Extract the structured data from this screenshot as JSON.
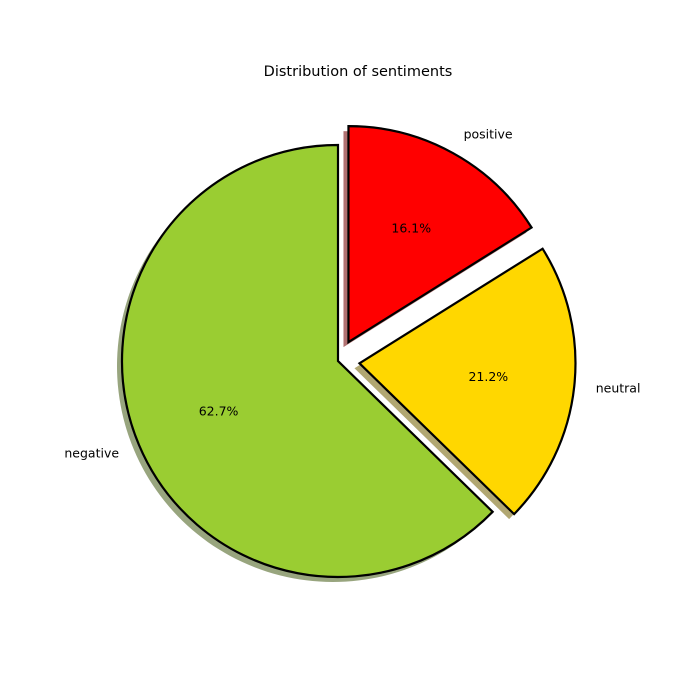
{
  "chart_data": {
    "type": "pie",
    "title": "Distribution of sentiments",
    "slices": [
      {
        "label": "negative",
        "value": 62.7,
        "pct_label": "62.7%",
        "color": "#9ACD32",
        "exploded": false
      },
      {
        "label": "neutral",
        "value": 21.2,
        "pct_label": "21.2%",
        "color": "#FFD700",
        "exploded": true
      },
      {
        "label": "positive",
        "value": 16.1,
        "pct_label": "16.1%",
        "color": "#FF0000",
        "exploded": true
      }
    ],
    "start_angle_deg": 90,
    "direction": "counterclockwise",
    "shadow": true,
    "edge_color": "#000000"
  }
}
